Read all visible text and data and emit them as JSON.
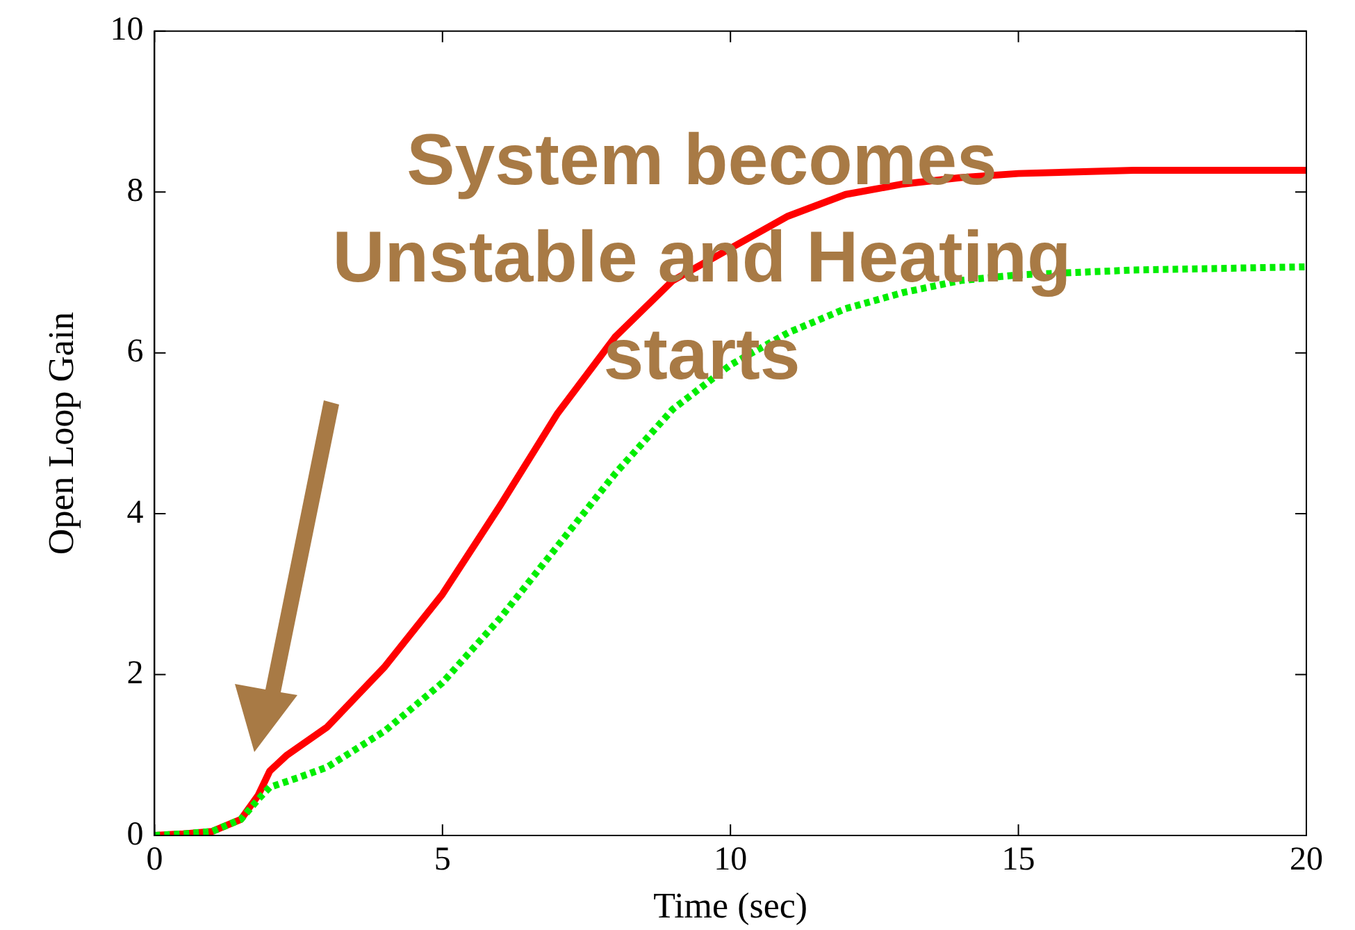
{
  "chart_data": {
    "type": "line",
    "xlabel": "Time (sec)",
    "ylabel": "Open Loop Gain",
    "annotations": [
      "System becomes Unstable and Heating starts"
    ],
    "xlim": [
      0,
      20
    ],
    "xticks": [
      0,
      5,
      10,
      15,
      20
    ],
    "ylim": [
      0,
      10
    ],
    "yticks": [
      0,
      2,
      4,
      6,
      8,
      10
    ],
    "grid": false,
    "legend": false,
    "marker": "none",
    "series": [
      {
        "color": "#ff0000",
        "line_style": "solid",
        "x": [
          0,
          0.5,
          1,
          1.5,
          1.8,
          2,
          2.3,
          3,
          4,
          5,
          6,
          7,
          8,
          9,
          10,
          11,
          12,
          13,
          14,
          15,
          17,
          20
        ],
        "values": [
          0,
          0.02,
          0.05,
          0.2,
          0.5,
          0.8,
          1,
          1.35,
          2.1,
          3,
          4.1,
          5.25,
          6.2,
          6.9,
          7.3,
          7.7,
          7.97,
          8.1,
          8.18,
          8.23,
          8.27,
          8.27
        ]
      },
      {
        "color": "#00ee00",
        "line_style": "dotted",
        "x": [
          0,
          0.5,
          1,
          1.5,
          1.8,
          2,
          2.5,
          3,
          4,
          5,
          6,
          7,
          8,
          9,
          10,
          11,
          12,
          13,
          14,
          15,
          17,
          20
        ],
        "values": [
          0,
          0.02,
          0.05,
          0.2,
          0.45,
          0.6,
          0.72,
          0.85,
          1.3,
          1.9,
          2.7,
          3.6,
          4.5,
          5.3,
          5.85,
          6.25,
          6.55,
          6.75,
          6.9,
          6.97,
          7.03,
          7.07
        ]
      }
    ]
  }
}
